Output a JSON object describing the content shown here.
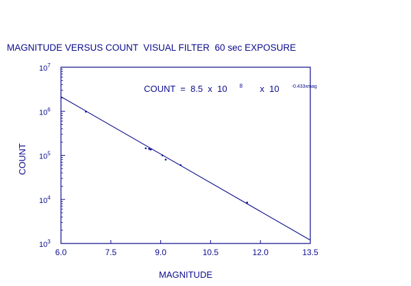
{
  "chart_data": {
    "type": "scatter",
    "title": "MAGNITUDE VERSUS COUNT  VISUAL FILTER  60 sec EXPOSURE",
    "xlabel": "MAGNITUDE",
    "ylabel": "COUNT",
    "x_scale": "linear",
    "y_scale": "log",
    "xlim": [
      6.0,
      13.5
    ],
    "ylim": [
      1000,
      10000000
    ],
    "x_ticks": [
      6.0,
      7.5,
      9.0,
      10.5,
      12.0,
      13.5
    ],
    "x_tick_labels": [
      "6.0",
      "7.5",
      "9.0",
      "10.5",
      "12.0",
      "13.5"
    ],
    "y_ticks": [
      1000,
      10000,
      100000,
      1000000,
      10000000
    ],
    "y_tick_labels": [
      {
        "base": "10",
        "exp": "3"
      },
      {
        "base": "10",
        "exp": "4"
      },
      {
        "base": "10",
        "exp": "5"
      },
      {
        "base": "10",
        "exp": "6"
      },
      {
        "base": "10",
        "exp": "7"
      }
    ],
    "grid": false,
    "color": "#0b0b8c",
    "series": [
      {
        "name": "",
        "type": "scatter",
        "points": [
          {
            "x": 6.75,
            "y": 980000
          },
          {
            "x": 8.55,
            "y": 145000
          },
          {
            "x": 8.65,
            "y": 140000
          },
          {
            "x": 8.7,
            "y": 135000
          },
          {
            "x": 9.05,
            "y": 100000
          },
          {
            "x": 9.15,
            "y": 80000
          },
          {
            "x": 9.6,
            "y": 60000
          },
          {
            "x": 11.6,
            "y": 8500
          }
        ]
      },
      {
        "name": "",
        "type": "line",
        "points": [
          {
            "x": 6.0,
            "y": 2140000
          },
          {
            "x": 13.5,
            "y": 1190
          }
        ]
      }
    ],
    "annotation": {
      "prefix": "COUNT  =  8.5  x  10",
      "prefix_exp": "8",
      "middle": "  x  10",
      "middle_exp": "-0.433xmag"
    }
  }
}
